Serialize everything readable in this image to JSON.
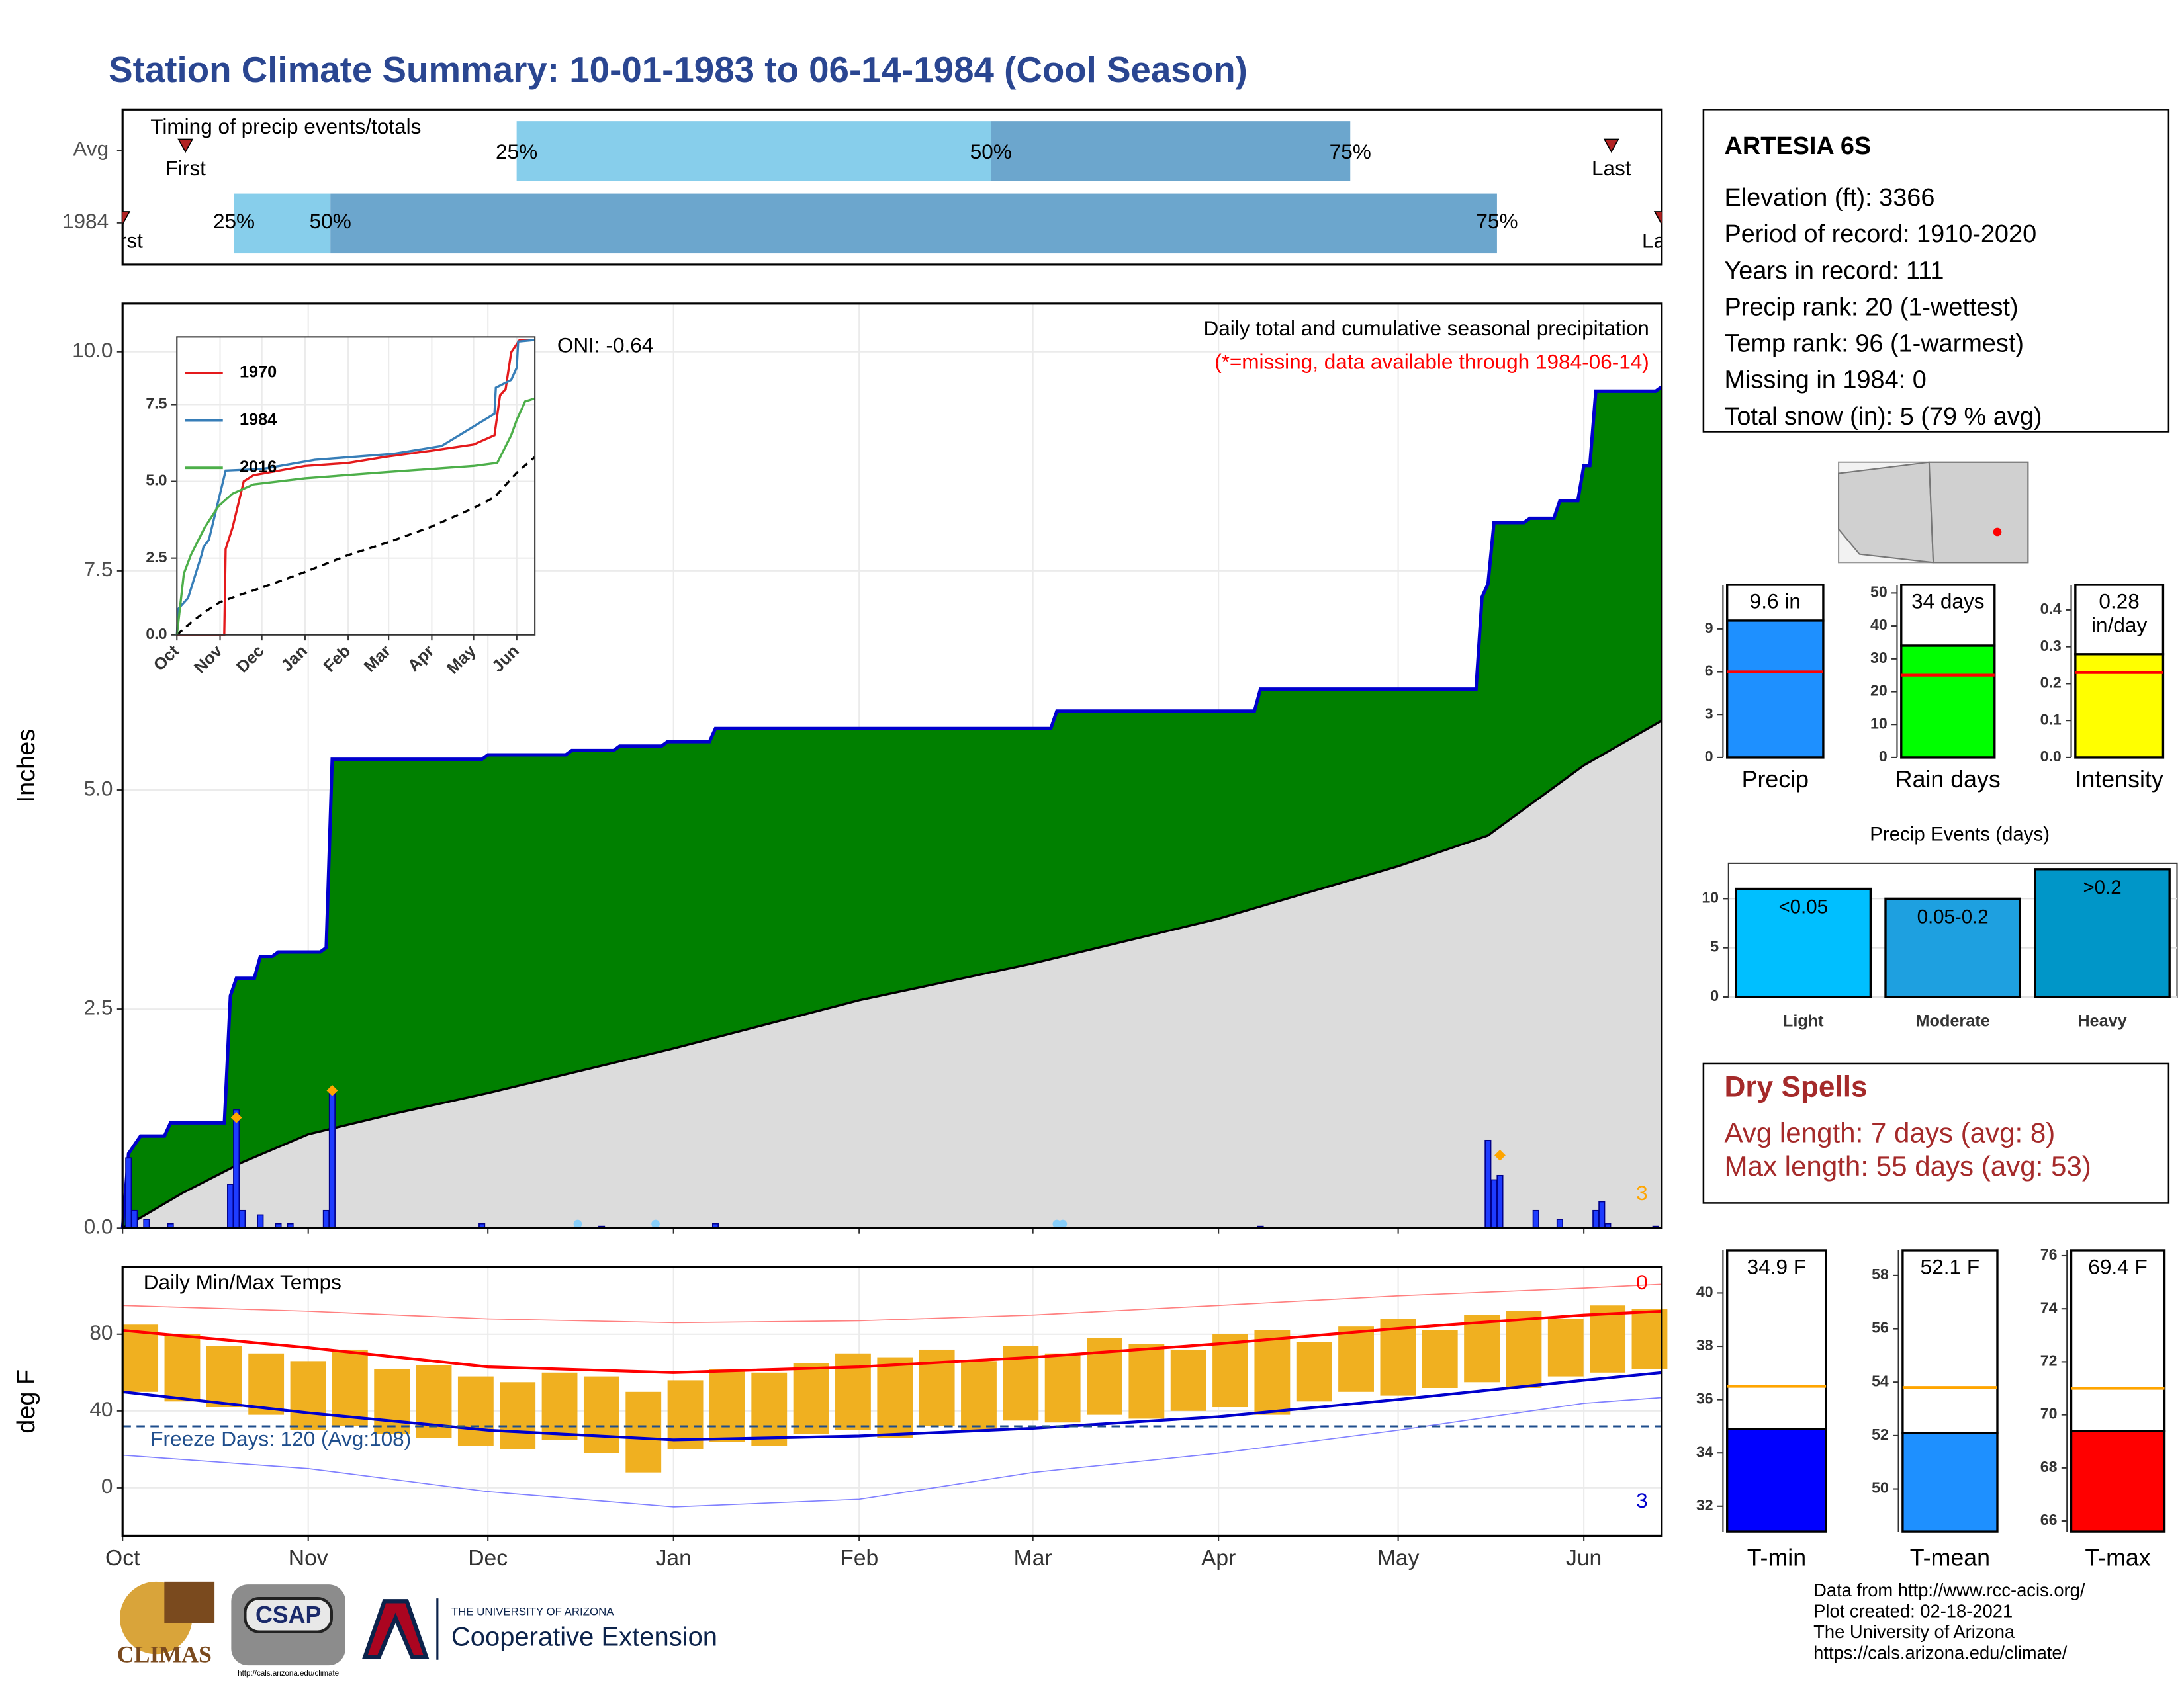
{
  "title": "Station Climate Summary: 10-01-1983 to 06-14-1984 (Cool Season)",
  "station": {
    "name": "ARTESIA 6S",
    "lines": [
      "Elevation (ft): 3366",
      "Period of record: 1910-2020",
      "Years in record: 111",
      "Precip rank: 20 (1-wettest)",
      "Temp rank: 96 (1-warmest)",
      "Missing in 1984: 0",
      "Total snow (in): 5 (79 % avg)"
    ]
  },
  "dry_spells": {
    "title": "Dry Spells",
    "lines": [
      "Avg length: 7 days (avg: 8)",
      "Max length: 55 days (avg: 53)"
    ]
  },
  "footer": {
    "lines": [
      "Data from http://www.rcc-acis.org/",
      "Plot created: 02-18-2021",
      "The University of Arizona",
      "https://cals.arizona.edu/climate/"
    ],
    "logos": [
      "CLIMAS",
      "CSAP",
      "http://cals.arizona.edu/climate",
      "THE UNIVERSITY OF ARIZONA",
      "Cooperative Extension"
    ]
  },
  "chart_data": [
    {
      "type": "timeline",
      "title": "Timing of precip events/totals",
      "xlim": [
        0,
        257
      ],
      "first_label": "First",
      "last_label": "Last",
      "quantile_labels": [
        "25%",
        "50%",
        "75%"
      ],
      "colors": [
        "#87ceeb",
        "#6ca6cd"
      ],
      "marker_color": "#b22222",
      "rows": [
        {
          "name": "Avg",
          "first": 10.5,
          "quantiles": [
            65.8,
            145,
            205
          ],
          "last": 248.6
        },
        {
          "name": "1984",
          "first": 0,
          "quantiles": [
            18.6,
            34.7,
            229.5
          ],
          "last": 257
        }
      ]
    },
    {
      "type": "area",
      "title": "Daily total and cumulative seasonal precipitation",
      "subtitle": "(*=missing, data available through 1984-06-14)",
      "annotation": "ONI: -0.64",
      "ylabel": "Inches",
      "xlim": [
        0,
        257
      ],
      "ylim": [
        0,
        10.55
      ],
      "xticks": [
        0,
        31,
        61,
        92,
        123,
        152,
        183,
        213,
        244
      ],
      "yticks": [
        {
          "value": 0,
          "label": "0.0"
        },
        2.5,
        {
          "value": 5,
          "label": "5.0"
        },
        7.5,
        {
          "value": 10,
          "label": "10.0"
        }
      ],
      "grid": true,
      "cumulative": {
        "color": "#008000",
        "line_color": "#0000cd",
        "x": [
          0,
          1,
          2,
          3,
          7,
          8,
          17,
          18,
          19,
          22,
          23,
          25,
          26,
          33,
          34,
          35,
          60,
          61,
          74,
          75,
          82,
          83,
          90,
          91,
          98,
          99,
          155,
          156,
          189,
          190,
          226,
          227,
          228,
          229,
          234,
          235,
          239,
          240,
          243,
          244,
          245,
          246,
          256,
          257
        ],
        "values": [
          0,
          0.85,
          0.95,
          1.05,
          1.05,
          1.2,
          1.2,
          2.65,
          2.85,
          2.85,
          3.1,
          3.1,
          3.15,
          3.15,
          3.2,
          5.35,
          5.35,
          5.4,
          5.4,
          5.45,
          5.45,
          5.5,
          5.5,
          5.55,
          5.55,
          5.7,
          5.7,
          5.9,
          5.9,
          6.15,
          6.15,
          7.2,
          7.35,
          8.05,
          8.05,
          8.1,
          8.1,
          8.3,
          8.3,
          8.7,
          8.7,
          9.55,
          9.55,
          9.6
        ]
      },
      "average": {
        "color": "#dcdcdc",
        "x": [
          0,
          10,
          20,
          31,
          45,
          61,
          92,
          123,
          152,
          183,
          213,
          228,
          244,
          257
        ],
        "values": [
          0,
          0.4,
          0.75,
          1.07,
          1.3,
          1.54,
          2.05,
          2.6,
          3.02,
          3.53,
          4.13,
          4.48,
          5.28,
          5.79
        ]
      },
      "daily": {
        "color": "#1e3cff",
        "x": [
          1,
          2,
          4,
          8,
          18,
          19,
          20,
          23,
          26,
          28,
          34,
          35,
          60,
          80,
          99,
          190,
          228,
          229,
          230,
          236,
          240,
          246,
          247,
          248,
          256
        ],
        "values": [
          0.8,
          0.2,
          0.1,
          0.05,
          0.5,
          1.35,
          0.2,
          0.15,
          0.05,
          0.05,
          0.2,
          1.55,
          0.05,
          0.02,
          0.05,
          0.02,
          1.0,
          0.55,
          0.6,
          0.2,
          0.1,
          0.2,
          0.3,
          0.05,
          0.02
        ]
      },
      "snow": {
        "color": "#ffa500",
        "x": [
          19,
          35,
          230
        ],
        "values": [
          1.26,
          1.57,
          0.83
        ]
      },
      "missing": {
        "color": "#87cefa",
        "x": [
          76,
          89,
          156,
          157
        ]
      },
      "snow_count": 3
    },
    {
      "type": "line",
      "xlim": [
        0,
        257
      ],
      "ylim": [
        0,
        9.7
      ],
      "xticks": [
        {
          "value": 0,
          "label": "Oct"
        },
        {
          "value": 31,
          "label": "Nov"
        },
        {
          "value": 61,
          "label": "Dec"
        },
        {
          "value": 92,
          "label": "Jan"
        },
        {
          "value": 123,
          "label": "Feb"
        },
        {
          "value": 152,
          "label": "Mar"
        },
        {
          "value": 183,
          "label": "Apr"
        },
        {
          "value": 213,
          "label": "May"
        },
        {
          "value": 244,
          "label": "Jun"
        }
      ],
      "yticks": [
        {
          "value": 0,
          "label": "0.0"
        },
        2.5,
        {
          "value": 5,
          "label": "5.0"
        },
        7.5
      ],
      "series": [
        {
          "name": "1970",
          "color": "#e41a1c",
          "x": [
            0,
            34,
            35,
            40,
            48,
            55,
            92,
            123,
            150,
            183,
            213,
            228,
            232,
            236,
            240,
            246,
            257
          ],
          "values": [
            0,
            0,
            2.8,
            3.5,
            5.0,
            5.2,
            5.5,
            5.6,
            5.8,
            6.0,
            6.2,
            6.5,
            7.8,
            8.0,
            9.2,
            9.6,
            9.6
          ]
        },
        {
          "name": "1984",
          "color": "#377eb8",
          "x": [
            0,
            1,
            8,
            18,
            19,
            23,
            35,
            61,
            99,
            156,
            190,
            228,
            229,
            240,
            244,
            245,
            257
          ],
          "values": [
            0,
            0.85,
            1.2,
            2.65,
            2.85,
            3.1,
            5.35,
            5.4,
            5.7,
            5.9,
            6.15,
            7.2,
            8.05,
            8.3,
            8.7,
            9.55,
            9.6
          ]
        },
        {
          "name": "2016",
          "color": "#4daf4a",
          "x": [
            0,
            5,
            10,
            20,
            30,
            40,
            55,
            92,
            150,
            213,
            230,
            240,
            244,
            250,
            257
          ],
          "values": [
            0,
            2.0,
            2.6,
            3.5,
            4.2,
            4.6,
            4.9,
            5.1,
            5.3,
            5.5,
            5.6,
            6.5,
            7.0,
            7.6,
            7.7
          ]
        }
      ],
      "average": {
        "color": "#000000",
        "x": [
          0,
          10,
          20,
          31,
          45,
          61,
          92,
          123,
          152,
          183,
          213,
          228,
          244,
          257
        ],
        "values": [
          0,
          0.4,
          0.75,
          1.07,
          1.3,
          1.54,
          2.05,
          2.6,
          3.02,
          3.53,
          4.13,
          4.48,
          5.28,
          5.79
        ]
      }
    },
    {
      "type": "temperature",
      "title": "Daily Min/Max Temps",
      "ylabel": "deg F",
      "xlim": [
        0,
        257
      ],
      "ylim": [
        -25,
        115
      ],
      "xticks": [
        {
          "value": 0,
          "label": "Oct"
        },
        {
          "value": 31,
          "label": "Nov"
        },
        {
          "value": 61,
          "label": "Dec"
        },
        {
          "value": 92,
          "label": "Jan"
        },
        {
          "value": 123,
          "label": "Feb"
        },
        {
          "value": 152,
          "label": "Mar"
        },
        {
          "value": 183,
          "label": "Apr"
        },
        {
          "value": 213,
          "label": "May"
        },
        {
          "value": 244,
          "label": "Jun"
        }
      ],
      "yticks": [
        0,
        40,
        80
      ],
      "grid": true,
      "bars": {
        "color": "#f0b020",
        "x": [
          0,
          7,
          14,
          21,
          28,
          35,
          42,
          49,
          56,
          63,
          70,
          77,
          84,
          91,
          98,
          105,
          112,
          119,
          126,
          133,
          140,
          147,
          154,
          161,
          168,
          175,
          182,
          189,
          196,
          203,
          210,
          217,
          224,
          231,
          238,
          245,
          252
        ],
        "max": [
          85,
          80,
          74,
          70,
          66,
          72,
          62,
          64,
          58,
          55,
          60,
          58,
          50,
          56,
          62,
          60,
          65,
          70,
          68,
          72,
          66,
          74,
          70,
          78,
          75,
          72,
          80,
          82,
          76,
          84,
          88,
          82,
          90,
          92,
          88,
          95,
          93
        ],
        "min": [
          50,
          45,
          42,
          38,
          30,
          32,
          28,
          26,
          22,
          20,
          25,
          18,
          8,
          20,
          24,
          22,
          28,
          30,
          26,
          32,
          30,
          35,
          34,
          38,
          36,
          40,
          42,
          38,
          45,
          50,
          48,
          52,
          55,
          52,
          58,
          60,
          62
        ]
      },
      "normal_max": {
        "color": "#ff0000",
        "x": [
          0,
          31,
          61,
          92,
          123,
          152,
          183,
          213,
          244,
          257
        ],
        "values": [
          82,
          73,
          63,
          60,
          63,
          68,
          75,
          83,
          90,
          92
        ]
      },
      "normal_min": {
        "color": "#0000cd",
        "x": [
          0,
          31,
          61,
          92,
          123,
          152,
          183,
          213,
          244,
          257
        ],
        "values": [
          50,
          39,
          30,
          25,
          27,
          31,
          37,
          46,
          56,
          60
        ]
      },
      "record_max": {
        "color": "#ff8080",
        "x": [
          0,
          31,
          61,
          92,
          123,
          152,
          183,
          213,
          244,
          257
        ],
        "values": [
          95,
          92,
          88,
          86,
          87,
          90,
          95,
          100,
          104,
          106
        ]
      },
      "record_min": {
        "color": "#8080ff",
        "x": [
          0,
          31,
          61,
          92,
          123,
          152,
          183,
          213,
          244,
          257
        ],
        "values": [
          17,
          10,
          -2,
          -10,
          -6,
          8,
          18,
          30,
          44,
          47
        ]
      },
      "freeze": {
        "value": 32,
        "color": "#1f4e8c",
        "label": "Freeze Days: 120 (Avg:108)"
      },
      "record_high_count": 0,
      "record_low_count": 3
    },
    {
      "type": "bar",
      "categories": [
        "Precip"
      ],
      "values": [
        9.6
      ],
      "value_labels": [
        "9.6 in"
      ],
      "average": 6,
      "average_color": "#ff0000",
      "color": "#1e90ff",
      "ylim": [
        0,
        12.1
      ],
      "yticks": [
        0,
        3,
        6,
        9
      ]
    },
    {
      "type": "bar",
      "categories": [
        "Rain days"
      ],
      "values": [
        34
      ],
      "value_labels": [
        "34 days"
      ],
      "average": 25,
      "average_color": "#ff0000",
      "color": "#00ff00",
      "ylim": [
        0,
        52.5
      ],
      "yticks": [
        0,
        10,
        20,
        30,
        40,
        50
      ]
    },
    {
      "type": "bar",
      "categories": [
        "Intensity"
      ],
      "values": [
        0.28
      ],
      "value_labels": [
        "0.28 in/day"
      ],
      "average": 0.23,
      "average_color": "#ff0000",
      "color": "#ffff00",
      "ylim": [
        0,
        0.468
      ],
      "yticks": [
        {
          "value": 0,
          "label": "0.0"
        },
        0.1,
        0.2,
        0.3,
        0.4
      ]
    },
    {
      "type": "bar",
      "title": "Precip Events (days)",
      "categories": [
        "Light",
        "Moderate",
        "Heavy"
      ],
      "values": [
        11,
        10,
        13
      ],
      "bar_labels": [
        "<0.05",
        "0.05-0.2",
        ">0.2"
      ],
      "colors": [
        "#00bfff",
        "#1ea0e0",
        "#0096c8"
      ],
      "ylim": [
        0,
        13.6
      ],
      "yticks": [
        0,
        5,
        10
      ],
      "grid": true
    },
    {
      "type": "bar",
      "categories": [
        "T-min"
      ],
      "values": [
        34.9
      ],
      "value_labels": [
        "34.9 F"
      ],
      "average": 36.5,
      "average_color": "#ffa500",
      "color": "#0000ff",
      "ylim": [
        31.05,
        41.6
      ],
      "yticks": [
        32,
        34,
        36,
        38,
        40
      ]
    },
    {
      "type": "bar",
      "categories": [
        "T-mean"
      ],
      "values": [
        52.1
      ],
      "value_labels": [
        "52.1 F"
      ],
      "average": 53.8,
      "average_color": "#ffa500",
      "color": "#1e90ff",
      "ylim": [
        48.4,
        58.94
      ],
      "yticks": [
        50,
        52,
        54,
        56,
        58
      ]
    },
    {
      "type": "bar",
      "categories": [
        "T-max"
      ],
      "values": [
        69.4
      ],
      "value_labels": [
        "69.4 F"
      ],
      "average": 71,
      "average_color": "#ffa500",
      "color": "#ff0000",
      "ylim": [
        65.6,
        76.2
      ],
      "yticks": [
        66,
        68,
        70,
        72,
        74,
        76
      ]
    }
  ]
}
